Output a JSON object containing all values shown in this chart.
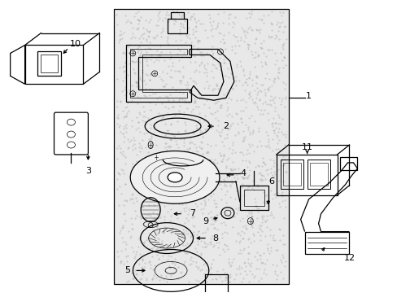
{
  "background_color": "#ffffff",
  "panel_bg": "#e8e8e8",
  "line_color": "#000000",
  "fig_width": 4.89,
  "fig_height": 3.6,
  "dpi": 100
}
